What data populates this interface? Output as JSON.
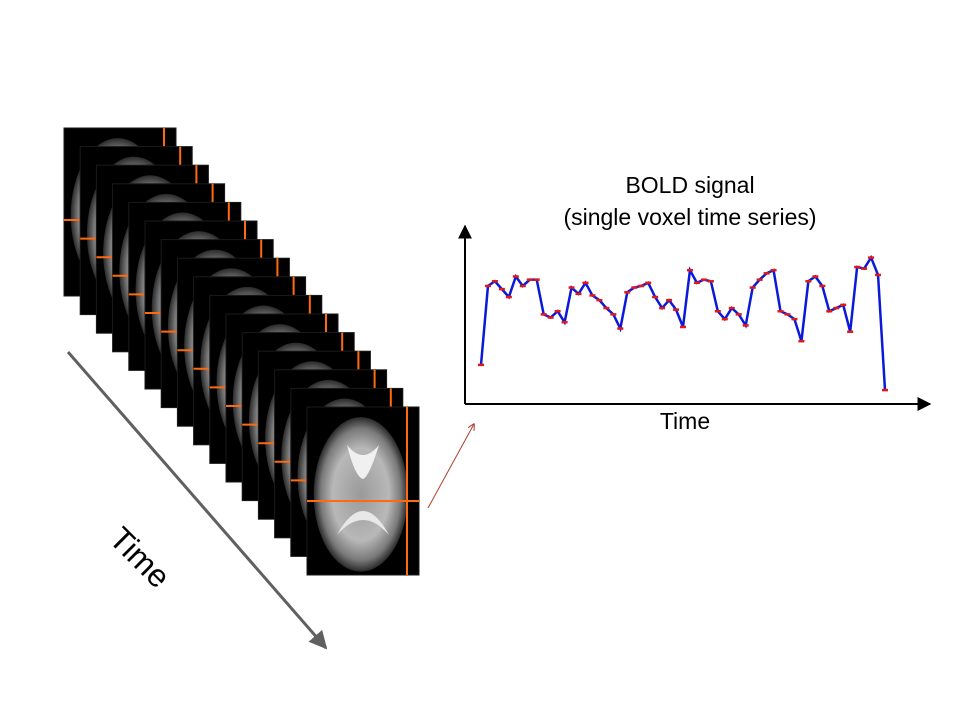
{
  "diagram": {
    "title_line1": "BOLD signal",
    "title_line2": "(single voxel time series)",
    "chart_xlabel": "Time",
    "stack_label": "Time",
    "frame_count": 16
  },
  "colors": {
    "crosshair": "#ff6a10",
    "signal_line": "#0a1ad8",
    "signal_marker": "#e01818",
    "time_arrow": "#606060",
    "pointer_arrow": "#b04030"
  },
  "chart_data": {
    "type": "line",
    "title": "BOLD signal (single voxel time series)",
    "xlabel": "Time",
    "ylabel": "",
    "series": [
      {
        "values": [
          2.1,
          7.1,
          7.4,
          6.9,
          6.4,
          7.7,
          7.1,
          7.5,
          7.5,
          5.3,
          5.1,
          5.5,
          4.8,
          7.0,
          6.6,
          7.3,
          6.5,
          6.2,
          5.7,
          5.3,
          4.4,
          6.7,
          7.0,
          7.1,
          7.3,
          6.4,
          5.7,
          6.2,
          5.6,
          4.5,
          8.1,
          7.3,
          7.5,
          7.4,
          5.5,
          5.0,
          5.7,
          5.3,
          4.6,
          7.0,
          7.5,
          7.9,
          8.1,
          5.5,
          5.3,
          5.0,
          3.6,
          7.4,
          7.7,
          7.1,
          5.5,
          5.7,
          5.9,
          4.2,
          8.3,
          8.2,
          8.9,
          7.8,
          0.5
        ]
      }
    ],
    "grid": false,
    "legend": "none"
  }
}
